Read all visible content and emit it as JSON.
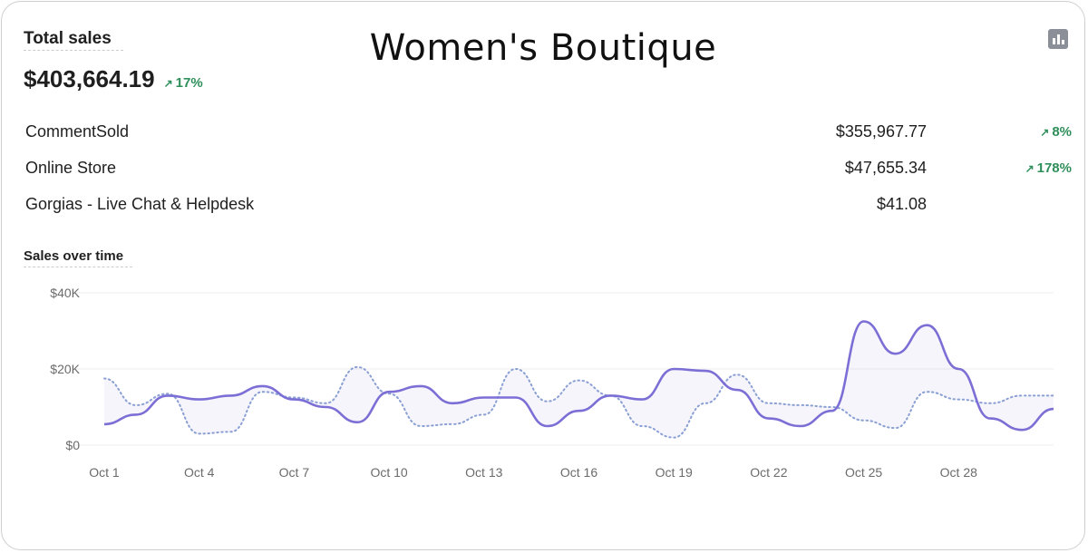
{
  "brand": "Women's Boutique",
  "total": {
    "label": "Total sales",
    "value": "$403,664.19",
    "change": "17%"
  },
  "icons": {
    "trend_up": "arrow-up-right-icon",
    "report": "bar-chart-icon"
  },
  "colors": {
    "primary": "#7b6fd6",
    "comparison": "#8a9fd4",
    "positive": "#2f8f5b",
    "grid": "#eeeeee",
    "text_muted": "#6b6b6b"
  },
  "channels": [
    {
      "name": "CommentSold",
      "value": "$355,967.77",
      "change": "8%"
    },
    {
      "name": "Online Store",
      "value": "$47,655.34",
      "change": "178%"
    },
    {
      "name": "Gorgias - Live Chat & Helpdesk",
      "value": "$41.08",
      "change": ""
    }
  ],
  "chart_data": {
    "type": "line",
    "title": "Sales over time",
    "ylim": [
      0,
      40000
    ],
    "yticks": [
      0,
      20000,
      40000
    ],
    "ytick_labels": [
      "$0",
      "$20K",
      "$40K"
    ],
    "x": [
      "Oct 1",
      "Oct 2",
      "Oct 3",
      "Oct 4",
      "Oct 5",
      "Oct 6",
      "Oct 7",
      "Oct 8",
      "Oct 9",
      "Oct 10",
      "Oct 11",
      "Oct 12",
      "Oct 13",
      "Oct 14",
      "Oct 15",
      "Oct 16",
      "Oct 17",
      "Oct 18",
      "Oct 19",
      "Oct 20",
      "Oct 21",
      "Oct 22",
      "Oct 23",
      "Oct 24",
      "Oct 25",
      "Oct 26",
      "Oct 27",
      "Oct 28",
      "Oct 29",
      "Oct 30",
      "Oct 31"
    ],
    "xtick_labels": [
      "Oct 1",
      "Oct 4",
      "Oct 7",
      "Oct 10",
      "Oct 13",
      "Oct 16",
      "Oct 19",
      "Oct 22",
      "Oct 25",
      "Oct 28"
    ],
    "xtick_index": [
      0,
      3,
      6,
      9,
      12,
      15,
      18,
      21,
      24,
      27
    ],
    "grid": true,
    "series": [
      {
        "style": "solid",
        "values": [
          5500,
          8000,
          13000,
          12000,
          13000,
          15500,
          12000,
          10000,
          6000,
          14000,
          15500,
          11000,
          12500,
          12500,
          5000,
          9000,
          13000,
          12000,
          20000,
          19500,
          14500,
          7000,
          5000,
          9000,
          32500,
          24000,
          31500,
          20000,
          7000,
          4000,
          9500
        ]
      },
      {
        "style": "dotted",
        "values": [
          17500,
          10500,
          13500,
          3000,
          3500,
          14000,
          12500,
          11000,
          20500,
          13500,
          5000,
          5500,
          8000,
          20000,
          11500,
          17000,
          13000,
          5000,
          2000,
          11000,
          18500,
          11000,
          10500,
          10000,
          6500,
          4500,
          14000,
          12000,
          11000,
          13000,
          13000
        ]
      }
    ]
  }
}
